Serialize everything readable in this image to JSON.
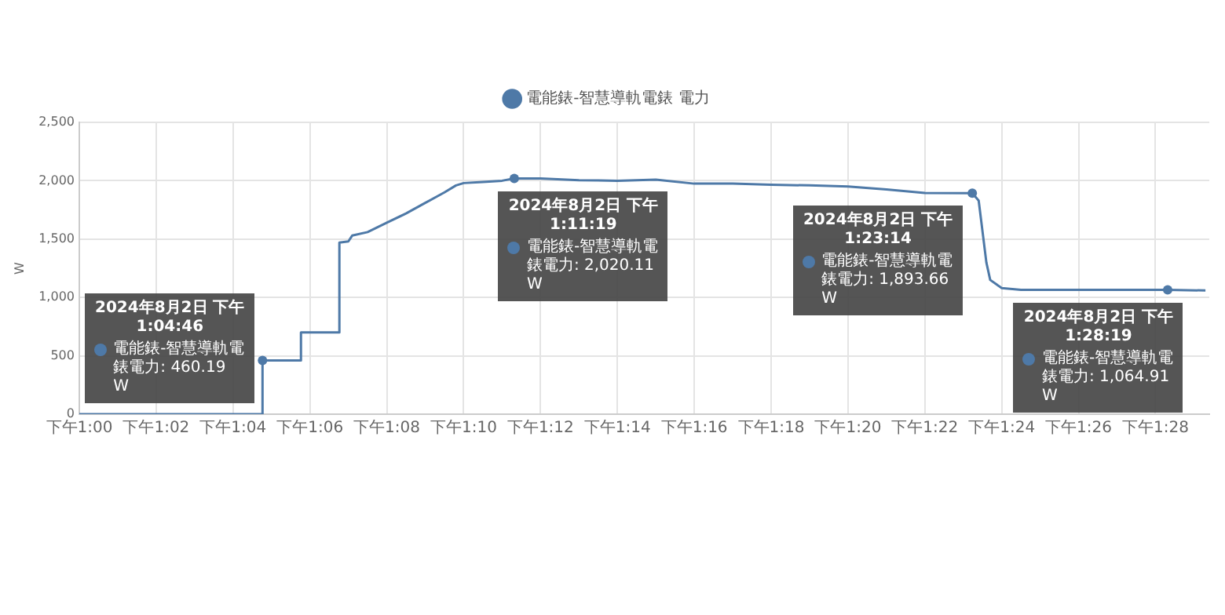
{
  "chart_data": {
    "type": "line",
    "ylabel": "W",
    "legend": "top",
    "grid": true,
    "marker": "none",
    "x": [
      "2024-08-02T13:00:00",
      "2024-08-02T13:02:00",
      "2024-08-02T13:04:46",
      "2024-08-02T13:04:46",
      "2024-08-02T13:05:46",
      "2024-08-02T13:05:46",
      "2024-08-02T13:06:46",
      "2024-08-02T13:06:46",
      "2024-08-02T13:07:00",
      "2024-08-02T13:07:06",
      "2024-08-02T13:07:30",
      "2024-08-02T13:08:00",
      "2024-08-02T13:08:30",
      "2024-08-02T13:09:00",
      "2024-08-02T13:09:30",
      "2024-08-02T13:09:48",
      "2024-08-02T13:10:00",
      "2024-08-02T13:10:30",
      "2024-08-02T13:11:00",
      "2024-08-02T13:11:19",
      "2024-08-02T13:12:00",
      "2024-08-02T13:13:00",
      "2024-08-02T13:14:00",
      "2024-08-02T13:15:00",
      "2024-08-02T13:16:00",
      "2024-08-02T13:17:00",
      "2024-08-02T13:18:00",
      "2024-08-02T13:19:00",
      "2024-08-02T13:20:00",
      "2024-08-02T13:21:00",
      "2024-08-02T13:22:00",
      "2024-08-02T13:23:14",
      "2024-08-02T13:23:24",
      "2024-08-02T13:23:36",
      "2024-08-02T13:23:42",
      "2024-08-02T13:24:00",
      "2024-08-02T13:24:30",
      "2024-08-02T13:26:00",
      "2024-08-02T13:28:19",
      "2024-08-02T13:29:18"
    ],
    "series": [
      {
        "name": "電能錶-智慧導軌電錶 電力",
        "color": "#4e79a7",
        "values": [
          0,
          0,
          0,
          460.19,
          460,
          700,
          700,
          1470,
          1480,
          1530,
          1560,
          1640,
          1720,
          1810,
          1900,
          1960,
          1980,
          1990,
          2000,
          2020.11,
          2020,
          2005,
          2000,
          2010,
          1975,
          1975,
          1965,
          1960,
          1950,
          1925,
          1895,
          1893.66,
          1830,
          1300,
          1150,
          1080,
          1065,
          1065,
          1064.91,
          1060
        ]
      }
    ],
    "xlim": [
      "2024-08-02T13:00:00",
      "2024-08-02T13:29:24"
    ],
    "xticks": [
      {
        "value": "2024-08-02T13:00",
        "label": "下午1:00"
      },
      {
        "value": "2024-08-02T13:02",
        "label": "下午1:02"
      },
      {
        "value": "2024-08-02T13:04",
        "label": "下午1:04"
      },
      {
        "value": "2024-08-02T13:06",
        "label": "下午1:06"
      },
      {
        "value": "2024-08-02T13:08",
        "label": "下午1:08"
      },
      {
        "value": "2024-08-02T13:10",
        "label": "下午1:10"
      },
      {
        "value": "2024-08-02T13:12",
        "label": "下午1:12"
      },
      {
        "value": "2024-08-02T13:14",
        "label": "下午1:14"
      },
      {
        "value": "2024-08-02T13:16",
        "label": "下午1:16"
      },
      {
        "value": "2024-08-02T13:18",
        "label": "下午1:18"
      },
      {
        "value": "2024-08-02T13:20",
        "label": "下午1:20"
      },
      {
        "value": "2024-08-02T13:22",
        "label": "下午1:22"
      },
      {
        "value": "2024-08-02T13:24",
        "label": "下午1:24"
      },
      {
        "value": "2024-08-02T13:26",
        "label": "下午1:26"
      },
      {
        "value": "2024-08-02T13:28",
        "label": "下午1:28"
      }
    ],
    "ylim": [
      0,
      2500
    ],
    "yticks": [
      {
        "value": 0,
        "label": "0"
      },
      {
        "value": 500,
        "label": "500"
      },
      {
        "value": 1000,
        "label": "1,000"
      },
      {
        "value": 1500,
        "label": "1,500"
      },
      {
        "value": 2000,
        "label": "2,000"
      },
      {
        "value": 2500,
        "label": "2,500"
      }
    ],
    "annotations": [
      {
        "text": "2024年8月2日 下午1:04:46\n電能錶-智慧導軌電錶電力: 460.19 W",
        "x": "2024-08-02T13:04:46",
        "y": 460.19
      },
      {
        "text": "2024年8月2日 下午1:11:19\n電能錶-智慧導軌電錶電力: 2,020.11 W",
        "x": "2024-08-02T13:11:19",
        "y": 2020.11
      },
      {
        "text": "2024年8月2日 下午1:23:14\n電能錶-智慧導軌電錶電力: 1,893.66 W",
        "x": "2024-08-02T13:23:14",
        "y": 1893.66
      },
      {
        "text": "2024年8月2日 下午1:28:19\n電能錶-智慧導軌電錶電力: 1,064.91 W",
        "x": "2024-08-02T13:28:19",
        "y": 1064.91
      }
    ]
  }
}
